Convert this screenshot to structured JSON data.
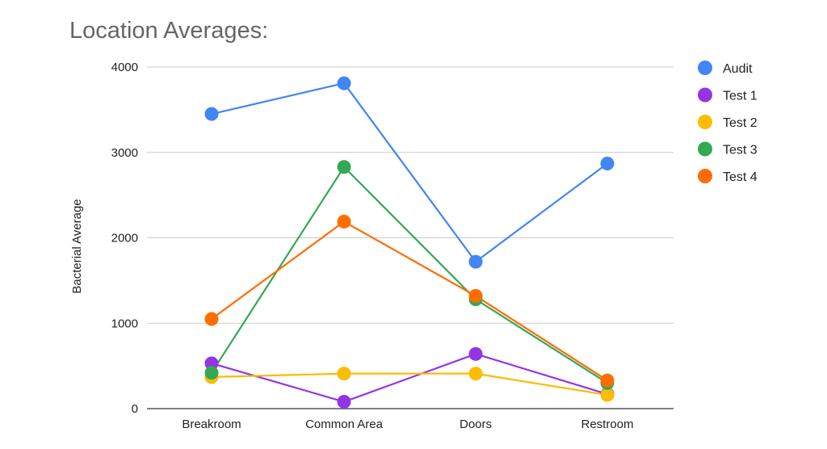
{
  "chart_data": {
    "type": "line",
    "title": "Location Averages:",
    "xlabel": "",
    "ylabel": "Bacterial Average",
    "categories": [
      "Breakroom",
      "Common Area",
      "Doors",
      "Restroom"
    ],
    "ylim": [
      0,
      4000
    ],
    "yticks": [
      0,
      1000,
      2000,
      3000,
      4000
    ],
    "grid": true,
    "legend_position": "right",
    "series": [
      {
        "name": "Audit",
        "color": "#4285f4",
        "values": [
          3450,
          3810,
          1720,
          2870
        ]
      },
      {
        "name": "Test 1",
        "color": "#9334e6",
        "values": [
          530,
          80,
          640,
          170
        ]
      },
      {
        "name": "Test 2",
        "color": "#fbbc04",
        "values": [
          370,
          410,
          410,
          160
        ]
      },
      {
        "name": "Test 3",
        "color": "#34a853",
        "values": [
          420,
          2830,
          1280,
          300
        ]
      },
      {
        "name": "Test 4",
        "color": "#ff6d01",
        "values": [
          1050,
          2190,
          1320,
          330
        ]
      }
    ]
  }
}
